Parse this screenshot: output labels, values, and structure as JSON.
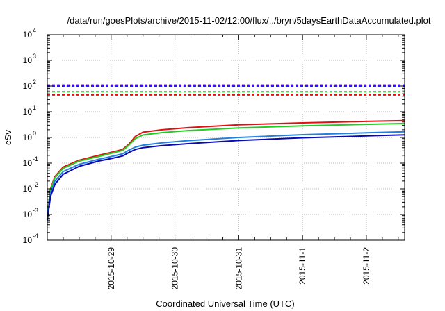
{
  "chart_data": {
    "type": "line",
    "title": "/data/run/goesPlots/archive/2015-11-02/12:00/flux/../bryn/5daysEarthDataAccumulated.plot",
    "xlabel": "Coordinated Universal Time (UTC)",
    "ylabel": "cSv",
    "y_scale": "log",
    "ylim_exponent": [
      -4,
      4
    ],
    "y_tick_labels": [
      {
        "base": "10",
        "exp": "-4"
      },
      {
        "base": "10",
        "exp": "-3"
      },
      {
        "base": "10",
        "exp": "-2"
      },
      {
        "base": "10",
        "exp": "-1"
      },
      {
        "base": "10",
        "exp": "0"
      },
      {
        "base": "10",
        "exp": "1"
      },
      {
        "base": "10",
        "exp": "2"
      },
      {
        "base": "10",
        "exp": "3"
      },
      {
        "base": "10",
        "exp": "4"
      }
    ],
    "x_range_days": [
      0,
      5.6
    ],
    "x_ticks": [
      {
        "label": "2015-10-29",
        "day": 1
      },
      {
        "label": "2015-10-30",
        "day": 2
      },
      {
        "label": "2015-10-31",
        "day": 3
      },
      {
        "label": "2015-11-1",
        "day": 4
      },
      {
        "label": "2015-11-2",
        "day": 5
      }
    ],
    "grid": true,
    "thresholds": [
      {
        "color": "#7b2ff0",
        "value": 110
      },
      {
        "color": "#2020e0",
        "value": 100
      },
      {
        "color": "#2ab82a",
        "value": 60
      },
      {
        "color": "#e01010",
        "value": 45
      }
    ],
    "series": [
      {
        "color": "#e01010",
        "points": [
          [
            0,
            0.001
          ],
          [
            0.05,
            0.01
          ],
          [
            0.12,
            0.03
          ],
          [
            0.25,
            0.07
          ],
          [
            0.5,
            0.13
          ],
          [
            0.8,
            0.2
          ],
          [
            1.0,
            0.26
          ],
          [
            1.18,
            0.34
          ],
          [
            1.28,
            0.55
          ],
          [
            1.38,
            1.1
          ],
          [
            1.5,
            1.6
          ],
          [
            1.8,
            2.0
          ],
          [
            2.2,
            2.4
          ],
          [
            3.0,
            3.1
          ],
          [
            4.0,
            3.7
          ],
          [
            5.0,
            4.2
          ],
          [
            5.6,
            4.5
          ]
        ]
      },
      {
        "color": "#22cc22",
        "points": [
          [
            0,
            0.001
          ],
          [
            0.05,
            0.009
          ],
          [
            0.12,
            0.027
          ],
          [
            0.25,
            0.063
          ],
          [
            0.5,
            0.12
          ],
          [
            0.8,
            0.18
          ],
          [
            1.0,
            0.24
          ],
          [
            1.18,
            0.31
          ],
          [
            1.28,
            0.5
          ],
          [
            1.38,
            0.9
          ],
          [
            1.5,
            1.25
          ],
          [
            1.8,
            1.55
          ],
          [
            2.2,
            1.85
          ],
          [
            3.0,
            2.35
          ],
          [
            4.0,
            2.85
          ],
          [
            5.0,
            3.25
          ],
          [
            5.6,
            3.5
          ]
        ]
      },
      {
        "color": "#2080e0",
        "points": [
          [
            0,
            0.0008
          ],
          [
            0.05,
            0.007
          ],
          [
            0.12,
            0.02
          ],
          [
            0.25,
            0.047
          ],
          [
            0.5,
            0.09
          ],
          [
            0.8,
            0.14
          ],
          [
            1.0,
            0.18
          ],
          [
            1.18,
            0.23
          ],
          [
            1.28,
            0.32
          ],
          [
            1.38,
            0.42
          ],
          [
            1.5,
            0.5
          ],
          [
            1.8,
            0.62
          ],
          [
            2.2,
            0.75
          ],
          [
            3.0,
            1.0
          ],
          [
            4.0,
            1.28
          ],
          [
            5.0,
            1.52
          ],
          [
            5.6,
            1.68
          ]
        ]
      },
      {
        "color": "#0a0ab0",
        "points": [
          [
            0,
            0.0006
          ],
          [
            0.05,
            0.005
          ],
          [
            0.12,
            0.015
          ],
          [
            0.25,
            0.037
          ],
          [
            0.5,
            0.075
          ],
          [
            0.8,
            0.12
          ],
          [
            1.0,
            0.15
          ],
          [
            1.18,
            0.19
          ],
          [
            1.28,
            0.26
          ],
          [
            1.38,
            0.34
          ],
          [
            1.5,
            0.4
          ],
          [
            1.8,
            0.48
          ],
          [
            2.2,
            0.57
          ],
          [
            3.0,
            0.76
          ],
          [
            4.0,
            0.97
          ],
          [
            5.0,
            1.15
          ],
          [
            5.6,
            1.27
          ]
        ]
      }
    ]
  }
}
